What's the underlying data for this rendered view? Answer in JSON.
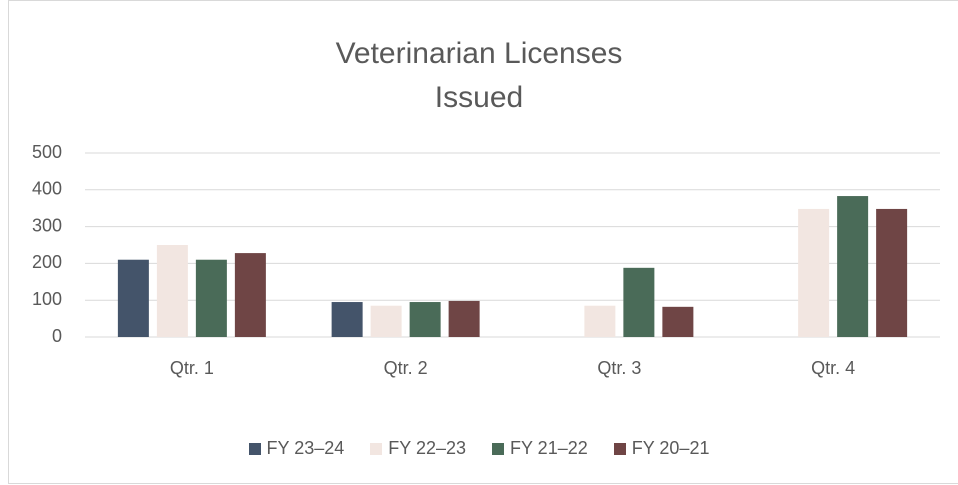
{
  "chart_data": {
    "type": "bar",
    "title": "Veterinarian Licenses Issued",
    "categories": [
      "Qtr. 1",
      "Qtr. 2",
      "Qtr. 3",
      "Qtr. 4"
    ],
    "series": [
      {
        "name": "FY 23–24",
        "color": "#44546a",
        "values": [
          210,
          95,
          null,
          null
        ]
      },
      {
        "name": "FY 22–23",
        "color": "#f2e6e1",
        "values": [
          250,
          85,
          85,
          348
        ]
      },
      {
        "name": "FY 21–22",
        "color": "#4a6b58",
        "values": [
          210,
          95,
          188,
          383
        ]
      },
      {
        "name": "FY 20–21",
        "color": "#6f4545",
        "values": [
          228,
          98,
          82,
          348
        ]
      }
    ],
    "ylim": [
      0,
      500
    ],
    "yticks": [
      0,
      100,
      200,
      300,
      400,
      500
    ],
    "grid": true,
    "legend": "bottom"
  }
}
